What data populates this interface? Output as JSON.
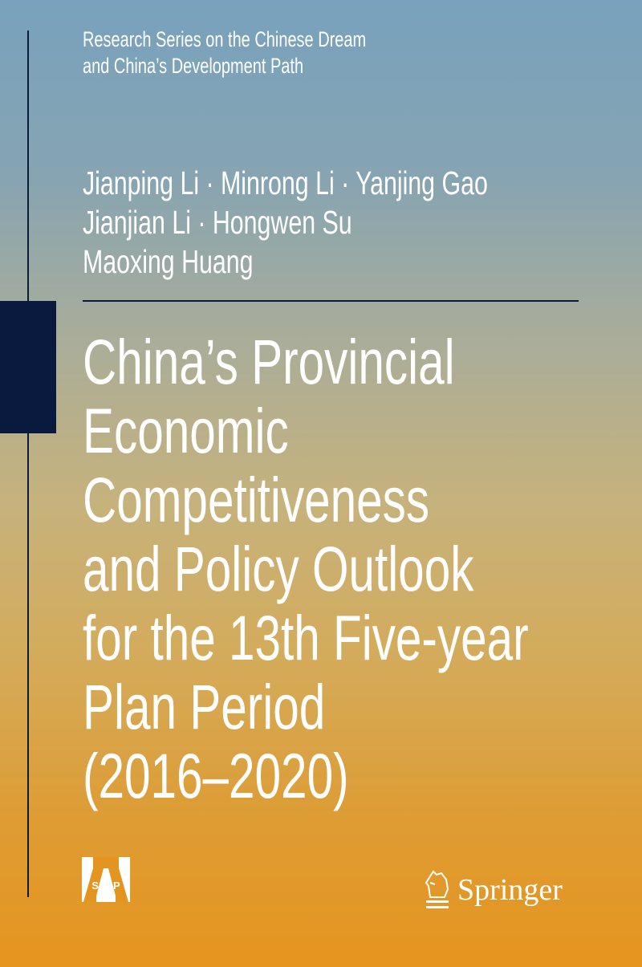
{
  "series": [
    "Research Series on the Chinese Dream",
    "and China’s Development Path"
  ],
  "authors": [
    "Jianping Li · Minrong Li · Yanjing Gao",
    "Jianjian Li · Hongwen Su",
    "Maoxing Huang"
  ],
  "title": [
    "China’s Provincial",
    "Economic",
    "Competitiveness",
    "and Policy Outlook",
    "for the 13th Five-year",
    "Plan Period",
    "(2016–2020)"
  ],
  "logos": {
    "ssap": "SSAP",
    "springer": "Springer"
  },
  "colors": {
    "top": "#78a2bd",
    "bottom": "#e6951f",
    "accent": "#0a1a3e"
  }
}
